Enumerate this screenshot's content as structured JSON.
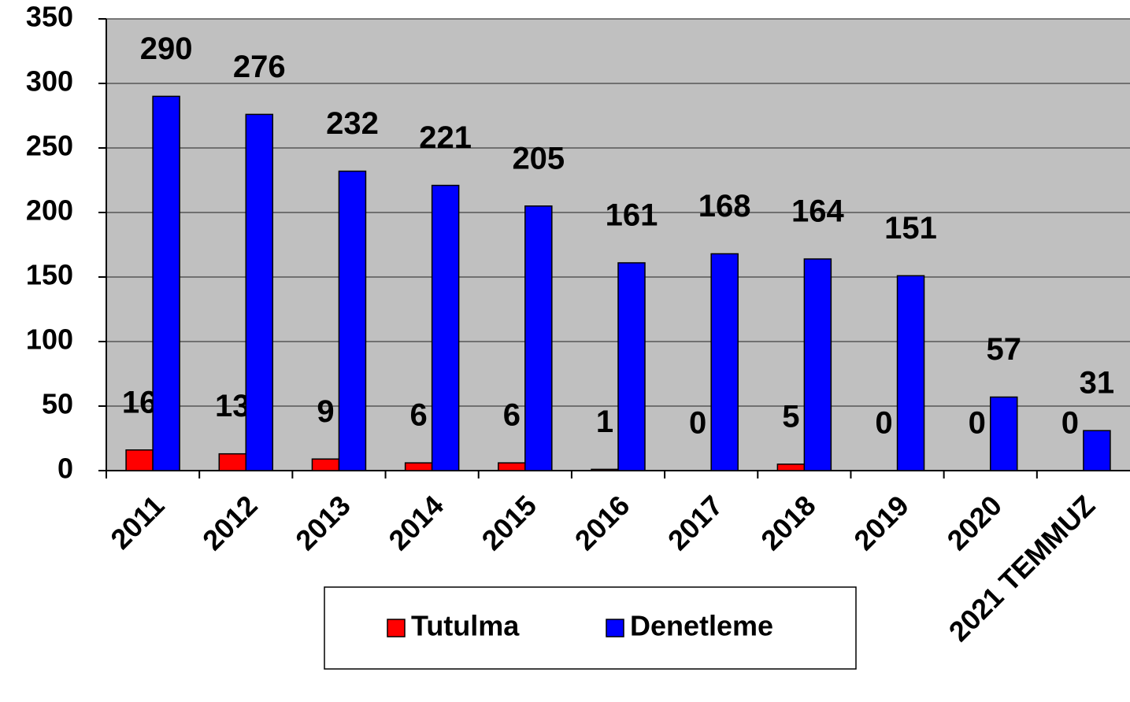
{
  "chart_data": {
    "type": "bar",
    "categories": [
      "2011",
      "2012",
      "2013",
      "2014",
      "2015",
      "2016",
      "2017",
      "2018",
      "2019",
      "2020",
      "2021 TEMMUZ"
    ],
    "series": [
      {
        "name": "Tutulma",
        "color": "#ff0000",
        "values": [
          16,
          13,
          9,
          6,
          6,
          1,
          0,
          5,
          0,
          0,
          0
        ]
      },
      {
        "name": "Denetleme",
        "color": "#0000ff",
        "values": [
          290,
          276,
          232,
          221,
          205,
          161,
          168,
          164,
          151,
          57,
          31
        ]
      }
    ],
    "ylim": [
      0,
      350
    ],
    "yticks": [
      0,
      50,
      100,
      150,
      200,
      250,
      300,
      350
    ],
    "grid": true,
    "legend": "bottom"
  }
}
